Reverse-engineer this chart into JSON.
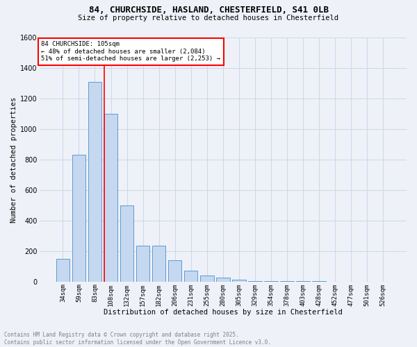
{
  "title1": "84, CHURCHSIDE, HASLAND, CHESTERFIELD, S41 0LB",
  "title2": "Size of property relative to detached houses in Chesterfield",
  "xlabel": "Distribution of detached houses by size in Chesterfield",
  "ylabel": "Number of detached properties",
  "bar_labels": [
    "34sqm",
    "59sqm",
    "83sqm",
    "108sqm",
    "132sqm",
    "157sqm",
    "182sqm",
    "206sqm",
    "231sqm",
    "255sqm",
    "280sqm",
    "305sqm",
    "329sqm",
    "354sqm",
    "378sqm",
    "403sqm",
    "428sqm",
    "452sqm",
    "477sqm",
    "501sqm",
    "526sqm"
  ],
  "bar_values": [
    150,
    830,
    1310,
    1100,
    500,
    235,
    235,
    140,
    70,
    42,
    28,
    15,
    5,
    2,
    2,
    2,
    2,
    1,
    1,
    1,
    1
  ],
  "bar_color": "#c5d8f0",
  "bar_edge_color": "#5b9bd5",
  "grid_color": "#d0d8e8",
  "background_color": "#eef2f8",
  "vline_x": 3.0,
  "vline_color": "red",
  "annotation_text": "84 CHURCHSIDE: 105sqm\n← 48% of detached houses are smaller (2,084)\n51% of semi-detached houses are larger (2,253) →",
  "annotation_box_color": "white",
  "annotation_box_edge": "red",
  "ylim": [
    0,
    1600
  ],
  "yticks": [
    0,
    200,
    400,
    600,
    800,
    1000,
    1200,
    1400,
    1600
  ],
  "footer_line1": "Contains HM Land Registry data © Crown copyright and database right 2025.",
  "footer_line2": "Contains public sector information licensed under the Open Government Licence v3.0."
}
